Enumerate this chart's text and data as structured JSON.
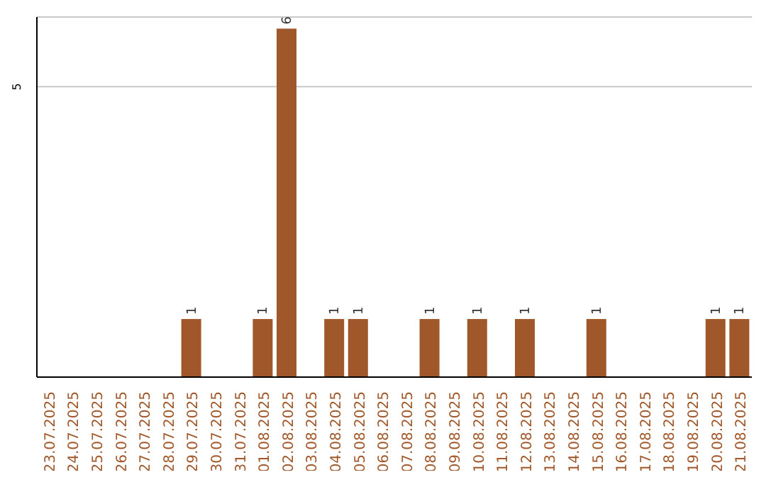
{
  "chart_data": {
    "type": "bar",
    "categories": [
      "23.07.2025",
      "24.07.2025",
      "25.07.2025",
      "26.07.2025",
      "27.07.2025",
      "28.07.2025",
      "29.07.2025",
      "30.07.2025",
      "31.07.2025",
      "01.08.2025",
      "02.08.2025",
      "03.08.2025",
      "04.08.2025",
      "05.08.2025",
      "06.08.2025",
      "07.08.2025",
      "08.08.2025",
      "09.08.2025",
      "10.08.2025",
      "11.08.2025",
      "12.08.2025",
      "13.08.2025",
      "14.08.2025",
      "15.08.2025",
      "16.08.2025",
      "17.08.2025",
      "18.08.2025",
      "19.08.2025",
      "20.08.2025",
      "21.08.2025"
    ],
    "values": [
      0,
      0,
      0,
      0,
      0,
      0,
      1,
      0,
      0,
      1,
      6,
      0,
      1,
      1,
      0,
      0,
      1,
      0,
      1,
      0,
      1,
      0,
      0,
      1,
      0,
      0,
      0,
      0,
      1,
      1
    ],
    "value_labels": [
      null,
      null,
      null,
      null,
      null,
      null,
      "1",
      null,
      null,
      "1",
      "6",
      null,
      "1",
      "1",
      null,
      null,
      "1",
      null,
      "1",
      null,
      "1",
      null,
      null,
      "1",
      null,
      null,
      null,
      null,
      "1",
      "1"
    ],
    "color": "#a0582a",
    "ylim": [
      0,
      6.2
    ],
    "yticks": [
      5
    ],
    "grid": "y"
  }
}
